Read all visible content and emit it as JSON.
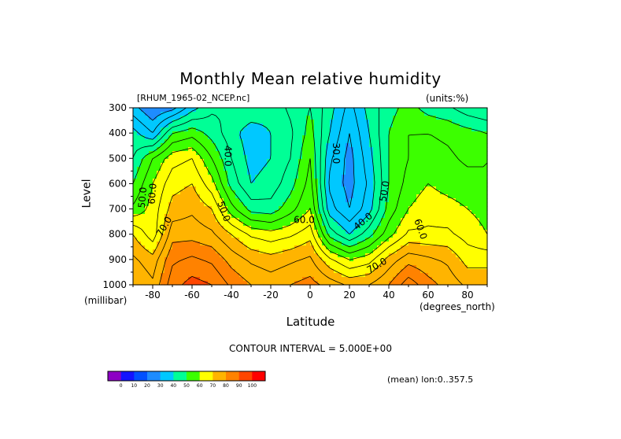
{
  "chart_data": {
    "type": "heatmap",
    "title": "Monthly Mean relative humidity",
    "subtitle": "[RHUM_1965-02_NCEP.nc]",
    "units": "(units:%)",
    "xlabel": "Latitude",
    "x_unit": "(degrees_north)",
    "ylabel": "Level",
    "y_unit": "(millibar)",
    "xlim": [
      -90,
      90
    ],
    "ylim": [
      1000,
      300
    ],
    "x_ticks": [
      -80,
      -60,
      -40,
      -20,
      0,
      20,
      40,
      60,
      80
    ],
    "y_ticks": [
      300,
      400,
      500,
      600,
      700,
      800,
      900,
      1000
    ],
    "lat": [
      -90,
      -80,
      -70,
      -60,
      -50,
      -40,
      -30,
      -20,
      -10,
      0,
      10,
      20,
      30,
      40,
      50,
      60,
      70,
      80,
      90
    ],
    "levels": [
      300,
      400,
      500,
      600,
      700,
      800,
      900,
      1000
    ],
    "values": [
      [
        32,
        25,
        28,
        38,
        44,
        45,
        44,
        42,
        46,
        50,
        42,
        33,
        42,
        48,
        52,
        48,
        46,
        42,
        40
      ],
      [
        42,
        35,
        50,
        53,
        48,
        42,
        37,
        40,
        44,
        52,
        40,
        30,
        40,
        50,
        55,
        55,
        54,
        52,
        50
      ],
      [
        45,
        55,
        63,
        65,
        55,
        45,
        38,
        40,
        45,
        55,
        36,
        28,
        38,
        50,
        55,
        57,
        56,
        54,
        55
      ],
      [
        50,
        60,
        68,
        70,
        62,
        48,
        40,
        42,
        48,
        57,
        34,
        28,
        36,
        50,
        57,
        60,
        58,
        57,
        55
      ],
      [
        56,
        62,
        72,
        74,
        70,
        57,
        48,
        47,
        53,
        60,
        37,
        30,
        38,
        52,
        60,
        63,
        62,
        60,
        58
      ],
      [
        70,
        62,
        78,
        78,
        76,
        70,
        64,
        62,
        64,
        68,
        48,
        40,
        48,
        58,
        66,
        66,
        66,
        63,
        60
      ],
      [
        76,
        72,
        84,
        86,
        84,
        78,
        74,
        72,
        74,
        76,
        66,
        60,
        63,
        72,
        78,
        76,
        74,
        68,
        68
      ],
      [
        80,
        76,
        88,
        92,
        90,
        84,
        80,
        78,
        80,
        82,
        78,
        74,
        75,
        80,
        88,
        82,
        78,
        74,
        74
      ]
    ],
    "contour_labels": [
      {
        "text": "30.0",
        "lat": 13,
        "level": 480,
        "angle": 90
      },
      {
        "text": "40.0",
        "lat": -42,
        "level": 490,
        "angle": 90
      },
      {
        "text": "40.0",
        "lat": 27,
        "level": 750,
        "angle": -40
      },
      {
        "text": "50.0",
        "lat": 38,
        "level": 630,
        "angle": -80
      },
      {
        "text": "50.0",
        "lat": -44,
        "level": 710,
        "angle": 70
      },
      {
        "text": "50.0",
        "lat": -85,
        "level": 655,
        "angle": -85
      },
      {
        "text": "60.0",
        "lat": -80,
        "level": 640,
        "angle": -85
      },
      {
        "text": "60.0",
        "lat": 56,
        "level": 780,
        "angle": 70
      },
      {
        "text": "60.0",
        "lat": -3,
        "level": 745,
        "angle": 0
      },
      {
        "text": "70.0",
        "lat": -74,
        "level": 770,
        "angle": -60
      },
      {
        "text": "70.0",
        "lat": 34,
        "level": 925,
        "angle": -30
      }
    ]
  },
  "colorbar": {
    "colors": [
      "#8d00c4",
      "#1414ff",
      "#0050ff",
      "#1e8cff",
      "#00c8ff",
      "#00ff96",
      "#3cff00",
      "#ffff00",
      "#ffb400",
      "#ff8200",
      "#ff4600",
      "#ff0000"
    ],
    "bounds": [
      0,
      10,
      20,
      30,
      40,
      50,
      60,
      70,
      80,
      90,
      100
    ],
    "labels": [
      "0",
      "10",
      "20",
      "30",
      "40",
      "50",
      "60",
      "70",
      "80",
      "90",
      "100"
    ]
  },
  "footer": {
    "contour_interval": "CONTOUR INTERVAL = 5.000E+00",
    "mean_note": "(mean) lon:0..357.5"
  }
}
